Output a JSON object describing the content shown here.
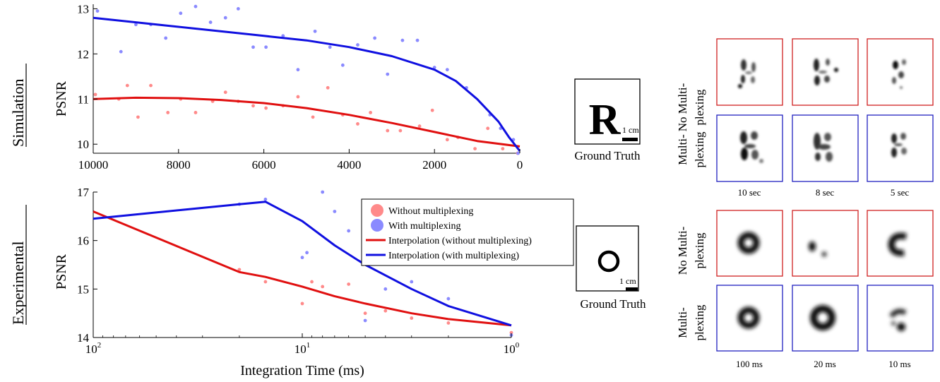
{
  "chart_data": [
    {
      "type": "scatter",
      "row_label": "Simulation",
      "ylabel": "PSNR",
      "xlabel": "",
      "x_scale": "linear",
      "x_reversed": true,
      "xlim": [
        0,
        10000
      ],
      "ylim": [
        9.8,
        13.1
      ],
      "x_ticks": [
        10000,
        8000,
        6000,
        4000,
        2000,
        0
      ],
      "y_ticks": [
        10,
        11,
        12,
        13
      ],
      "grid": false,
      "series": [
        {
          "kind": "points",
          "color": "#ff8a8a",
          "points": [
            [
              9950,
              11.1
            ],
            [
              9400,
              11.0
            ],
            [
              9200,
              11.3
            ],
            [
              8950,
              10.6
            ],
            [
              8650,
              11.3
            ],
            [
              8250,
              10.7
            ],
            [
              7950,
              11.0
            ],
            [
              7600,
              10.7
            ],
            [
              7200,
              10.95
            ],
            [
              6900,
              11.15
            ],
            [
              6600,
              10.95
            ],
            [
              6250,
              10.85
            ],
            [
              5950,
              10.8
            ],
            [
              5550,
              10.85
            ],
            [
              5200,
              11.05
            ],
            [
              4850,
              10.6
            ],
            [
              4500,
              11.25
            ],
            [
              4150,
              10.65
            ],
            [
              3800,
              10.45
            ],
            [
              3500,
              10.7
            ],
            [
              3100,
              10.3
            ],
            [
              2800,
              10.3
            ],
            [
              2350,
              10.4
            ],
            [
              2050,
              10.75
            ],
            [
              1700,
              10.1
            ],
            [
              1450,
              10.15
            ],
            [
              1050,
              9.9
            ],
            [
              750,
              10.35
            ],
            [
              400,
              9.9
            ],
            [
              50,
              9.8
            ]
          ]
        },
        {
          "kind": "points",
          "color": "#8a8aff",
          "points": [
            [
              9900,
              12.95
            ],
            [
              9350,
              12.05
            ],
            [
              9000,
              12.65
            ],
            [
              8650,
              12.65
            ],
            [
              8300,
              12.35
            ],
            [
              7950,
              12.9
            ],
            [
              7600,
              13.05
            ],
            [
              7250,
              12.7
            ],
            [
              6900,
              12.8
            ],
            [
              6600,
              13.0
            ],
            [
              6250,
              12.15
            ],
            [
              5950,
              12.15
            ],
            [
              5550,
              12.4
            ],
            [
              5200,
              11.65
            ],
            [
              4800,
              12.5
            ],
            [
              4450,
              12.15
            ],
            [
              4150,
              11.75
            ],
            [
              3800,
              12.2
            ],
            [
              3400,
              12.35
            ],
            [
              3100,
              11.55
            ],
            [
              2750,
              12.3
            ],
            [
              2400,
              12.3
            ],
            [
              2000,
              11.7
            ],
            [
              1700,
              11.65
            ],
            [
              1250,
              11.25
            ],
            [
              700,
              10.65
            ],
            [
              450,
              10.35
            ],
            [
              150,
              10.1
            ],
            [
              40,
              9.8
            ]
          ]
        },
        {
          "kind": "line",
          "color": "#e01010",
          "points": [
            [
              10000,
              11.0
            ],
            [
              9000,
              11.03
            ],
            [
              8000,
              11.02
            ],
            [
              7000,
              10.98
            ],
            [
              6000,
              10.91
            ],
            [
              5000,
              10.8
            ],
            [
              4000,
              10.65
            ],
            [
              3000,
              10.47
            ],
            [
              2000,
              10.27
            ],
            [
              1000,
              10.07
            ],
            [
              0,
              9.95
            ]
          ]
        },
        {
          "kind": "line",
          "color": "#1010e0",
          "points": [
            [
              10000,
              12.8
            ],
            [
              9000,
              12.7
            ],
            [
              8000,
              12.6
            ],
            [
              7000,
              12.5
            ],
            [
              6000,
              12.4
            ],
            [
              5000,
              12.3
            ],
            [
              4000,
              12.15
            ],
            [
              3000,
              11.95
            ],
            [
              2000,
              11.65
            ],
            [
              1500,
              11.4
            ],
            [
              1000,
              11.0
            ],
            [
              500,
              10.5
            ],
            [
              250,
              10.15
            ],
            [
              0,
              9.85
            ]
          ]
        }
      ]
    },
    {
      "type": "scatter",
      "row_label": "Experimental",
      "ylabel": "PSNR",
      "xlabel": "Integration Time (ms)",
      "x_scale": "log",
      "x_reversed": true,
      "xlim": [
        1,
        100
      ],
      "ylim": [
        14,
        17
      ],
      "x_ticks": [
        100,
        10,
        1
      ],
      "x_tick_labels": [
        {
          "base": "10",
          "exp": "2"
        },
        {
          "base": "10",
          "exp": "1"
        },
        {
          "base": "10",
          "exp": "0"
        }
      ],
      "y_ticks": [
        14,
        15,
        16,
        17
      ],
      "grid": false,
      "legend_position": "top-right",
      "series": [
        {
          "name": "Without multiplexing",
          "kind": "points",
          "color": "#ff8a8a",
          "points": [
            [
              20,
              15.4
            ],
            [
              15,
              15.15
            ],
            [
              10,
              14.7
            ],
            [
              9,
              15.15
            ],
            [
              8,
              15.05
            ],
            [
              6,
              15.1
            ],
            [
              5,
              14.5
            ],
            [
              4,
              14.55
            ],
            [
              3,
              14.4
            ],
            [
              2,
              14.3
            ],
            [
              1,
              14.1
            ]
          ]
        },
        {
          "name": "With multiplexing",
          "kind": "points",
          "color": "#8a8aff",
          "points": [
            [
              20,
              16.75
            ],
            [
              15,
              16.85
            ],
            [
              10,
              15.65
            ],
            [
              9.5,
              15.75
            ],
            [
              8,
              17.0
            ],
            [
              7,
              16.6
            ],
            [
              6,
              16.2
            ],
            [
              5,
              14.35
            ],
            [
              4,
              15.0
            ],
            [
              3,
              15.15
            ],
            [
              2,
              14.8
            ],
            [
              1,
              14.05
            ]
          ]
        },
        {
          "name": "Interpolation (without multiplexing)",
          "kind": "line",
          "color": "#e01010",
          "points": [
            [
              100,
              16.6
            ],
            [
              20,
              15.35
            ],
            [
              15,
              15.25
            ],
            [
              10,
              15.05
            ],
            [
              7,
              14.85
            ],
            [
              5,
              14.7
            ],
            [
              3,
              14.5
            ],
            [
              2,
              14.38
            ],
            [
              1,
              14.25
            ]
          ]
        },
        {
          "name": "Interpolation (with multiplexing)",
          "kind": "line",
          "color": "#1010e0",
          "points": [
            [
              100,
              16.45
            ],
            [
              20,
              16.75
            ],
            [
              15,
              16.8
            ],
            [
              10,
              16.4
            ],
            [
              7,
              15.9
            ],
            [
              5,
              15.5
            ],
            [
              3,
              15.0
            ],
            [
              2,
              14.65
            ],
            [
              1,
              14.25
            ]
          ]
        }
      ]
    }
  ],
  "ground_truth": [
    {
      "label": "Ground Truth",
      "scale_label": "1 cm",
      "glyph": "R"
    },
    {
      "label": "Ground Truth",
      "scale_label": "1 cm",
      "glyph": "O"
    }
  ],
  "reconstructions": {
    "frame_colors": {
      "no_multiplexing": "#d02020",
      "multiplexing": "#2020c0"
    },
    "groups": [
      {
        "row_labels": [
          [
            "No Multi-",
            "plexing"
          ],
          [
            "Multi-",
            "plexing"
          ]
        ],
        "columns": [
          "10 sec",
          "8 sec",
          "5 sec"
        ]
      },
      {
        "row_labels": [
          [
            "No Multi-",
            "plexing"
          ],
          [
            "Multi-",
            "plexing"
          ]
        ],
        "columns": [
          "100 ms",
          "20 ms",
          "10 ms"
        ]
      }
    ]
  }
}
